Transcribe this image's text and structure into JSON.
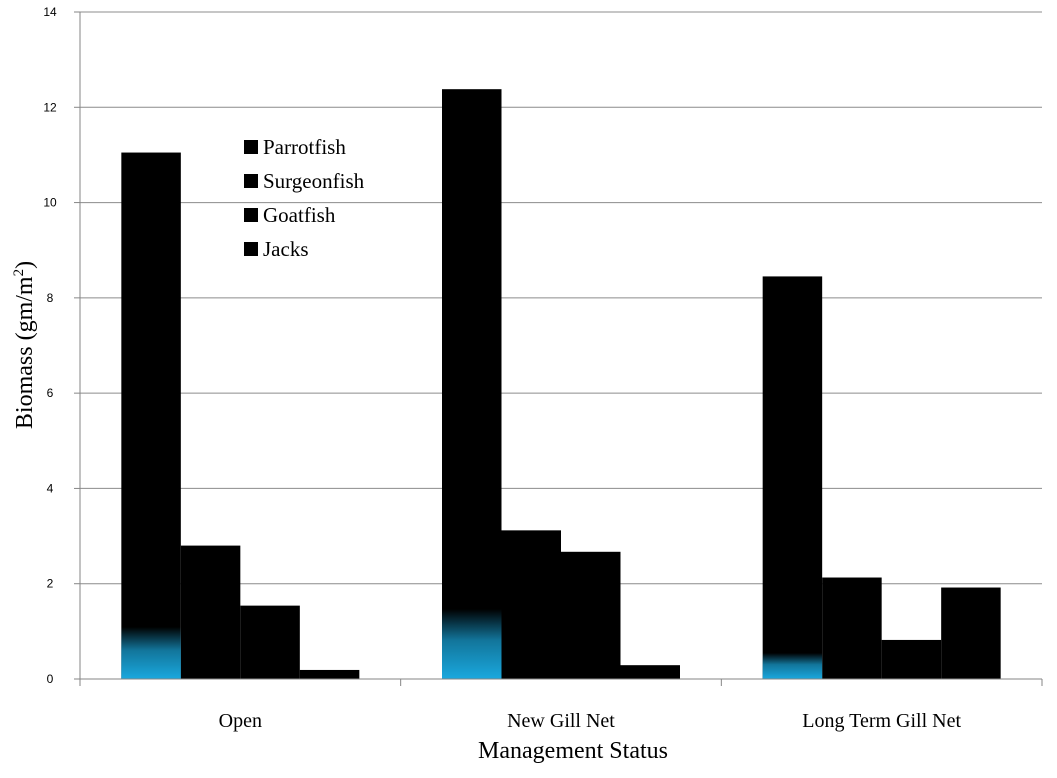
{
  "chart_data": {
    "type": "bar",
    "categories": [
      "Open",
      "New Gill Net",
      "Long Term Gill Net"
    ],
    "series": [
      {
        "name": "Parrotfish",
        "values": [
          11.05,
          12.38,
          8.45
        ]
      },
      {
        "name": "Surgeonfish",
        "values": [
          2.8,
          3.12,
          2.13
        ]
      },
      {
        "name": "Goatfish",
        "values": [
          1.54,
          2.67,
          0.82
        ]
      },
      {
        "name": "Jacks",
        "values": [
          0.19,
          0.29,
          1.92
        ]
      }
    ],
    "ylabel": "Biomass (gm/m",
    "ylabel_sup": "2",
    "ylabel_close": ")",
    "xlabel": "Management Status",
    "ylim": [
      0,
      14
    ],
    "yticks": [
      0,
      2,
      4,
      6,
      8,
      10,
      12,
      14
    ],
    "grid": true,
    "legend_position": "top-left",
    "colors": {
      "bar": "#000000",
      "highlight": "#1aa8de",
      "grid": "#8c8c8c",
      "axis": "#868686"
    }
  }
}
